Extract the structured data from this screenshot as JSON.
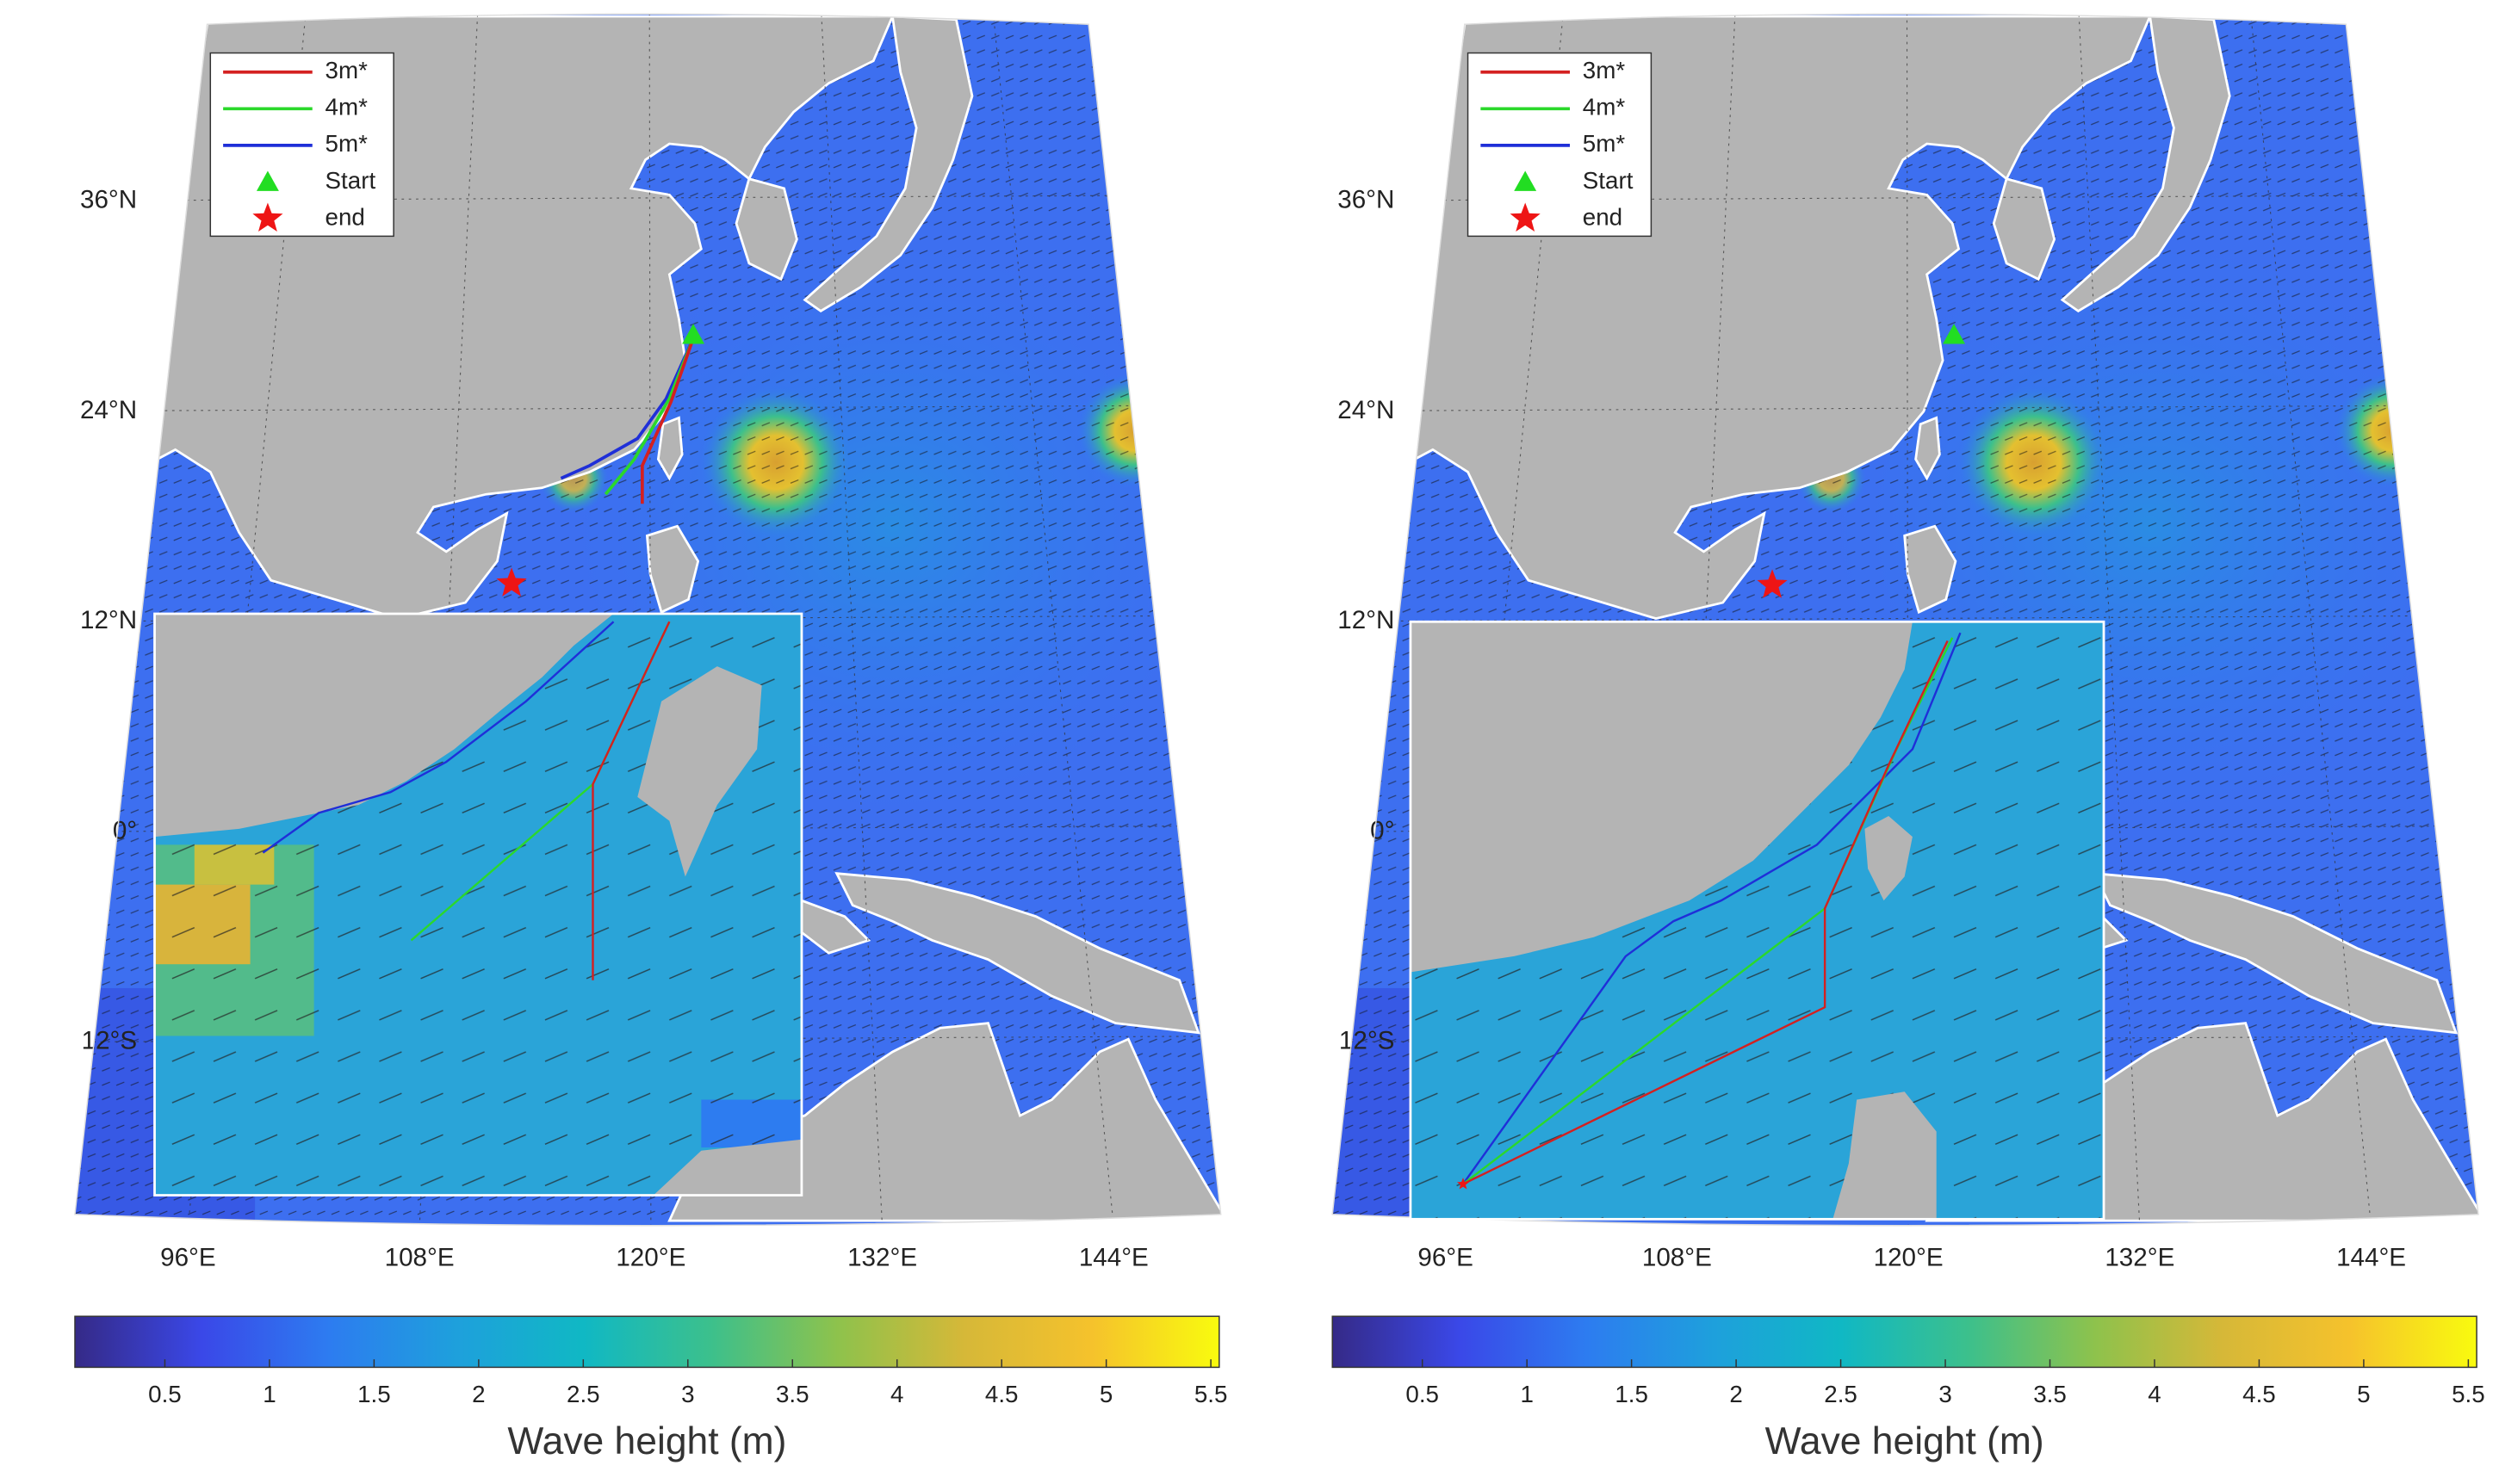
{
  "panels": [
    {
      "legend": [
        {
          "name": "3m*",
          "color": "#d42020"
        },
        {
          "name": "4m*",
          "color": "#2bd82b"
        },
        {
          "name": "5m*",
          "color": "#1f2fd8"
        },
        {
          "name": "Start",
          "color": "#22dd22",
          "marker": "triangle"
        },
        {
          "name": "end",
          "color": "#ee1515",
          "marker": "star"
        }
      ],
      "lat_ticks": [
        {
          "value": 36,
          "label": "36°N"
        },
        {
          "value": 24,
          "label": "24°N"
        },
        {
          "value": 12,
          "label": "12°N"
        },
        {
          "value": 0,
          "label": "0°"
        },
        {
          "value": -12,
          "label": "12°S"
        }
      ],
      "lon_ticks": [
        {
          "value": 96,
          "label": "96°E"
        },
        {
          "value": 108,
          "label": "108°E"
        },
        {
          "value": 120,
          "label": "120°E"
        },
        {
          "value": 132,
          "label": "132°E"
        },
        {
          "value": 144,
          "label": "144°E"
        }
      ],
      "colorbar": {
        "label": "Wave height (m)",
        "clim": [
          0.07,
          5.54
        ],
        "ticks": [
          0.5,
          1,
          1.5,
          2,
          2.5,
          3,
          3.5,
          4,
          4.5,
          5,
          5.5
        ],
        "colormap": [
          "#352a87",
          "#3a48e8",
          "#2d7cf0",
          "#1ea0dc",
          "#10b8c4",
          "#3cc08c",
          "#8ec24c",
          "#d6b838",
          "#f5c22c",
          "#f9fb0e"
        ]
      }
    },
    {
      "legend": [
        {
          "name": "3m*",
          "color": "#d42020"
        },
        {
          "name": "4m*",
          "color": "#2bd82b"
        },
        {
          "name": "5m*",
          "color": "#1f2fd8"
        },
        {
          "name": "Start",
          "color": "#22dd22",
          "marker": "triangle"
        },
        {
          "name": "end",
          "color": "#ee1515",
          "marker": "star"
        }
      ],
      "lat_ticks": [
        {
          "value": 36,
          "label": "36°N"
        },
        {
          "value": 24,
          "label": "24°N"
        },
        {
          "value": 12,
          "label": "12°N"
        },
        {
          "value": 0,
          "label": "0°"
        },
        {
          "value": -12,
          "label": "12°S"
        }
      ],
      "lon_ticks": [
        {
          "value": 96,
          "label": "96°E"
        },
        {
          "value": 108,
          "label": "108°E"
        },
        {
          "value": 120,
          "label": "120°E"
        },
        {
          "value": 132,
          "label": "132°E"
        },
        {
          "value": 144,
          "label": "144°E"
        }
      ],
      "colorbar": {
        "label": "Wave height (m)",
        "clim": [
          0.07,
          5.54
        ],
        "ticks": [
          0.5,
          1,
          1.5,
          2,
          2.5,
          3,
          3.5,
          4,
          4.5,
          5,
          5.5
        ],
        "colormap": [
          "#352a87",
          "#3a48e8",
          "#2d7cf0",
          "#1ea0dc",
          "#10b8c4",
          "#3cc08c",
          "#8ec24c",
          "#d6b838",
          "#f5c22c",
          "#f9fb0e"
        ]
      }
    }
  ]
}
